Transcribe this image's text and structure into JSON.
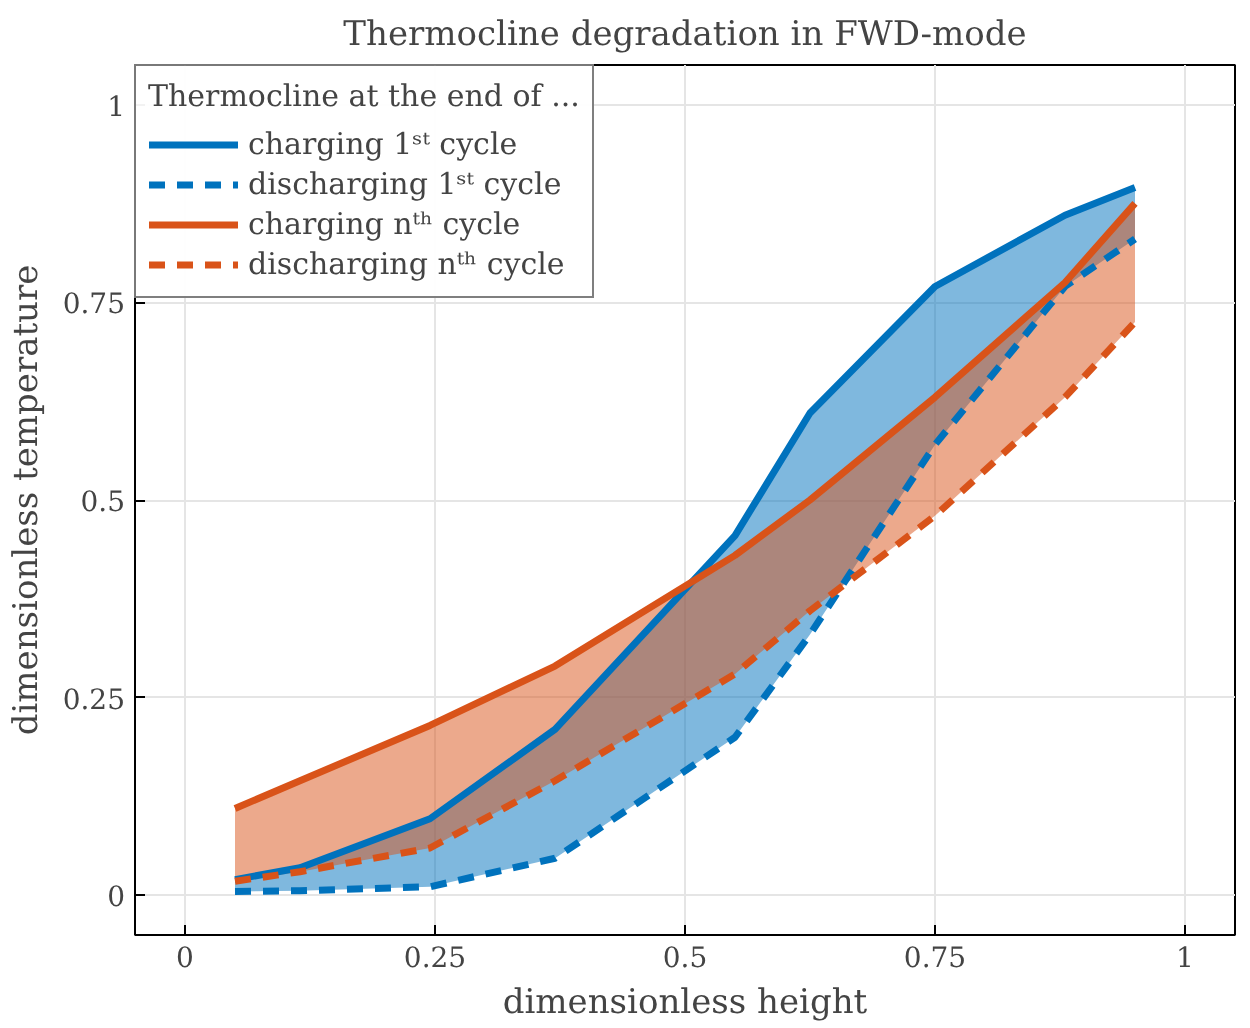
{
  "chart_data": {
    "type": "line",
    "title": "Thermocline degradation in FWD-mode",
    "xlabel": "dimensionless height",
    "ylabel": "dimensionless temperature",
    "legend_title": "Thermocline at the end of ...",
    "x": [
      0.05,
      0.115,
      0.245,
      0.37,
      0.55,
      0.625,
      0.75,
      0.88,
      0.95
    ],
    "series": [
      {
        "name": "charging 1ˢᵗ cycle",
        "color": "#0072bd",
        "line_style": "solid",
        "values": [
          0.02,
          0.035,
          0.097,
          0.21,
          0.455,
          0.61,
          0.77,
          0.86,
          0.895
        ],
        "lower": [
          0.005,
          0.006,
          0.011,
          0.047,
          0.2,
          0.33,
          0.57,
          0.77,
          0.83
        ],
        "upper": [
          0.02,
          0.035,
          0.097,
          0.21,
          0.455,
          0.61,
          0.77,
          0.86,
          0.895
        ]
      },
      {
        "name": "discharging 1ˢᵗ cycle",
        "color": "#0072bd",
        "line_style": "dashed",
        "values": [
          0.005,
          0.006,
          0.011,
          0.047,
          0.2,
          0.33,
          0.57,
          0.77,
          0.83
        ]
      },
      {
        "name": "charging nᵗʰ cycle",
        "color": "#d95319",
        "line_style": "solid",
        "values": [
          0.11,
          0.145,
          0.215,
          0.29,
          0.43,
          0.5,
          0.63,
          0.775,
          0.875
        ],
        "lower": [
          0.018,
          0.03,
          0.06,
          0.145,
          0.28,
          0.36,
          0.48,
          0.63,
          0.725
        ],
        "upper": [
          0.11,
          0.145,
          0.215,
          0.29,
          0.43,
          0.5,
          0.63,
          0.775,
          0.875
        ]
      },
      {
        "name": "discharging nᵗʰ cycle",
        "color": "#d95319",
        "line_style": "dashed",
        "values": [
          0.018,
          0.03,
          0.06,
          0.145,
          0.28,
          0.36,
          0.48,
          0.63,
          0.725
        ]
      }
    ],
    "xlim": [
      -0.05,
      1.05
    ],
    "ylim": [
      -0.05,
      1.05
    ],
    "xticks": [
      0,
      {
        "value": 0.25,
        "label": "0.25"
      },
      {
        "value": 0.5,
        "label": "0.5"
      },
      {
        "value": 0.75,
        "label": "0.75"
      },
      1
    ],
    "yticks": [
      0,
      {
        "value": 0.25,
        "label": "0.25"
      },
      {
        "value": 0.5,
        "label": "0.5"
      },
      {
        "value": 0.75,
        "label": "0.75"
      },
      1
    ],
    "grid": true,
    "legend": "top left",
    "marker": "none"
  }
}
